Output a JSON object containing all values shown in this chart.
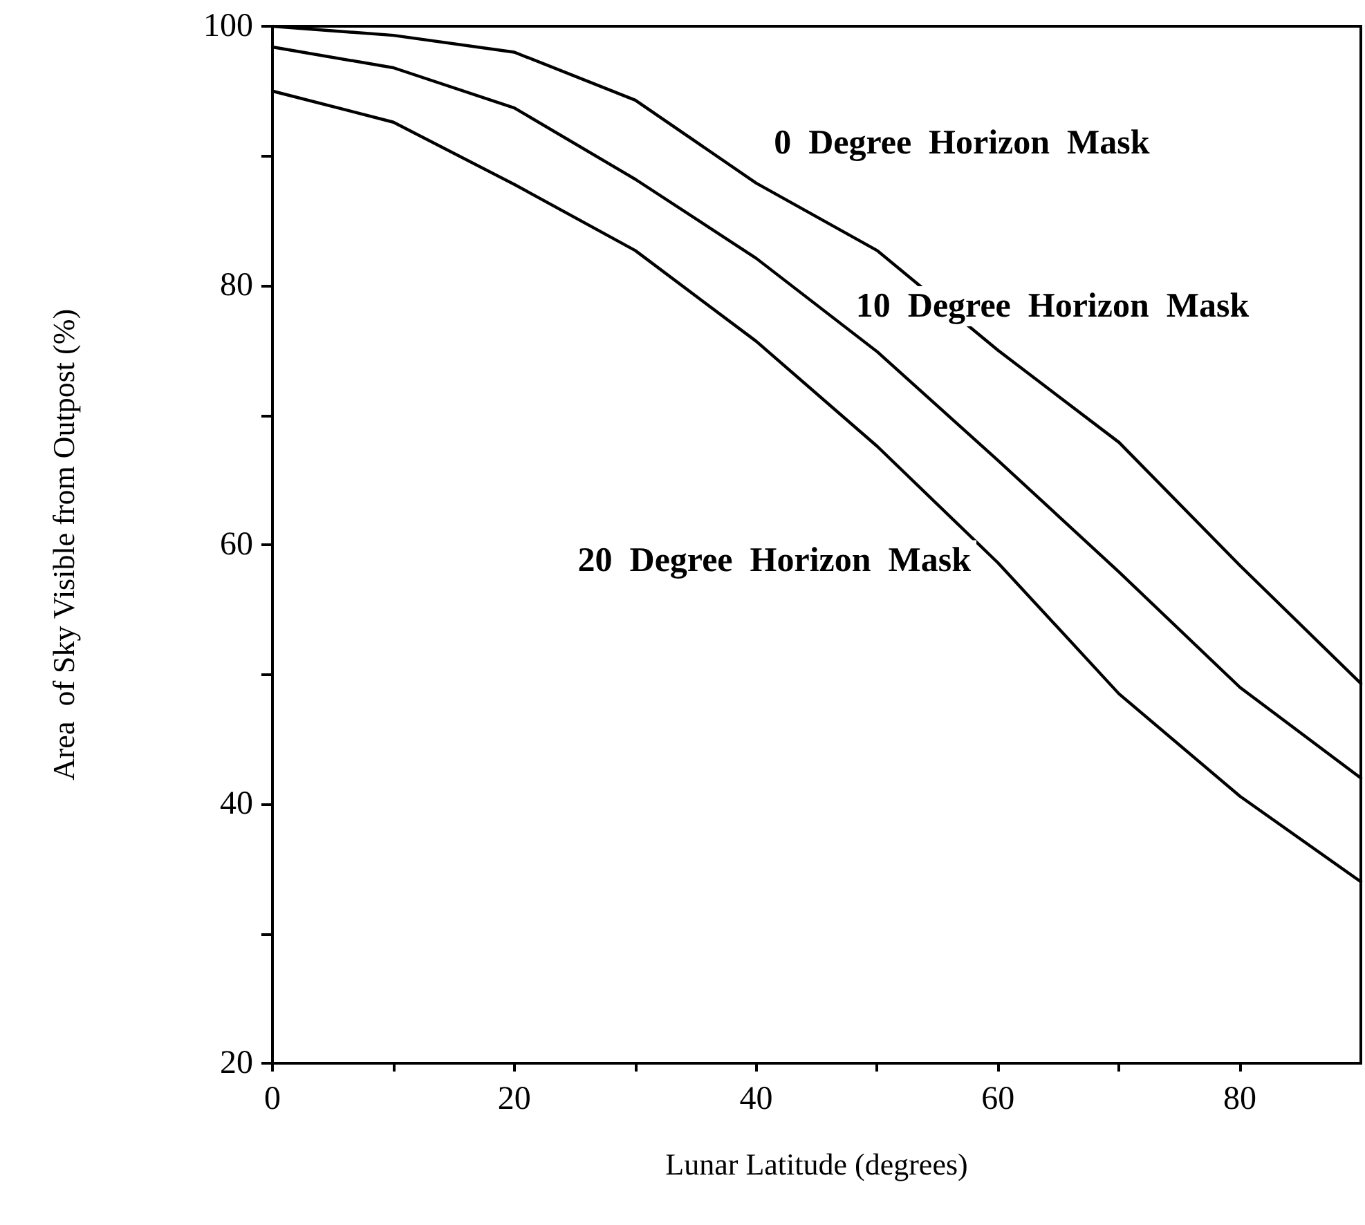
{
  "chart_data": {
    "type": "line",
    "xlabel": "Lunar Latitude (degrees)",
    "ylabel": "Area  of Sky Visible from Outpost (%)",
    "x": [
      0,
      10,
      20,
      30,
      40,
      50,
      60,
      70,
      80,
      90
    ],
    "series": [
      {
        "name": "0  Degree  Horizon  Mask",
        "color": "#000000",
        "values": [
          100,
          99.3,
          98,
          94.3,
          87.9,
          82.7,
          75,
          67.9,
          58.4,
          49.3
        ]
      },
      {
        "name": "10  Degree  Horizon  Mask",
        "color": "#000000",
        "values": [
          98.4,
          96.8,
          93.7,
          88.2,
          82.1,
          74.9,
          66.5,
          57.9,
          49,
          42
        ]
      },
      {
        "name": "20  Degree  Horizon  Mask",
        "color": "#000000",
        "values": [
          95,
          92.6,
          87.8,
          82.7,
          75.7,
          67.6,
          58.6,
          48.5,
          40.6,
          34
        ]
      }
    ],
    "xlim": [
      0,
      90
    ],
    "xticks": [
      0,
      {
        "value": 10,
        "label": null
      },
      20,
      {
        "value": 30,
        "label": null
      },
      40,
      {
        "value": 50,
        "label": null
      },
      60,
      {
        "value": 70,
        "label": null
      },
      80
    ],
    "ylim": [
      20,
      100
    ],
    "yticks": [
      20,
      {
        "value": 30,
        "label": null
      },
      40,
      {
        "value": 50,
        "label": null
      },
      60,
      {
        "value": 70,
        "label": null
      },
      80,
      {
        "value": 90,
        "label": null
      },
      100
    ],
    "grid": false,
    "legend": false,
    "marker": "none",
    "line_style": "solid"
  }
}
